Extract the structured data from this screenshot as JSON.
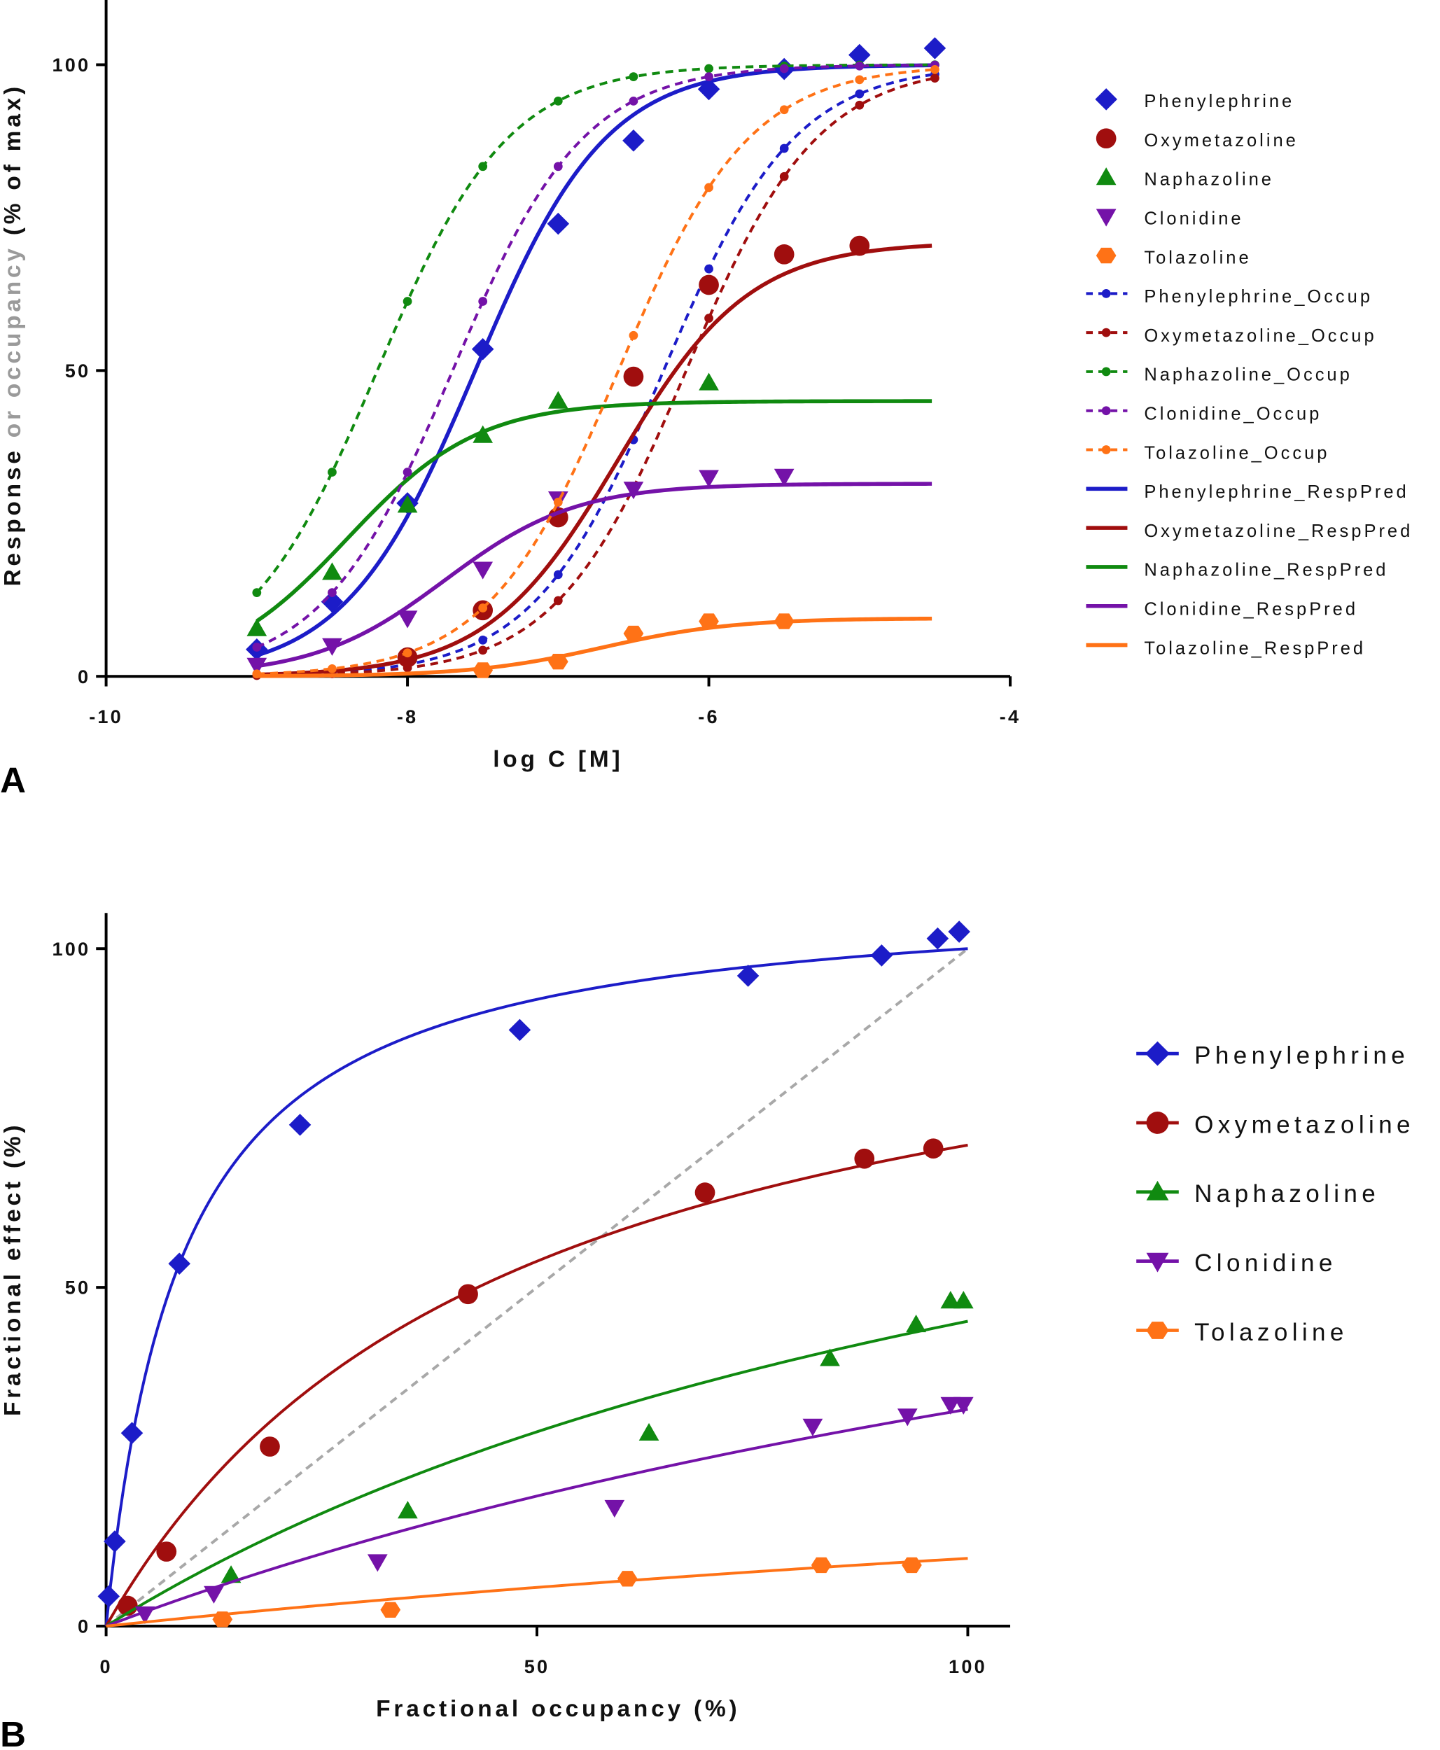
{
  "colors": {
    "Phenylephrine": "#1c1cc8",
    "Oxymetazoline": "#a00e0e",
    "Naphazoline": "#108a10",
    "Clonidine": "#7412a8",
    "Tolazoline": "#ff7216",
    "identity": "#a8a8a8",
    "grayText": "#9a9a9a"
  },
  "panel_labels": {
    "a": "A",
    "b": "B"
  },
  "chart_data": [
    {
      "type": "line",
      "id": "A",
      "xlabel": "log C [M]",
      "ylabel_parts": [
        "Response ",
        "or occupancy",
        " (% of max)"
      ],
      "xlim": [
        -10,
        -4
      ],
      "ylim": [
        0,
        100
      ],
      "xticks": [
        -10,
        -8,
        -6,
        -4
      ],
      "yticks": [
        0,
        50,
        100
      ],
      "grid": false,
      "legend_position": "right",
      "drugs": [
        {
          "name": "Phenylephrine",
          "marker": "diamond",
          "x": [
            -9,
            -8.5,
            -8,
            -7.5,
            -7,
            -6.5,
            -6,
            -5.5,
            -5,
            -4.5
          ],
          "y": [
            4.4,
            12.2,
            28.3,
            53.5,
            74,
            87.6,
            96,
            99.3,
            101.6,
            102.7
          ],
          "occ_logK": -6.3,
          "resp_max": 100,
          "resp_logEC50": -7.55
        },
        {
          "name": "Oxymetazoline",
          "marker": "circle",
          "x": [
            -8,
            -7.5,
            -7,
            -6.5,
            -6,
            -5.5,
            -5
          ],
          "y": [
            3.1,
            10.8,
            26,
            49,
            64,
            69,
            70.4
          ],
          "occ_logK": -6.15,
          "resp_max": 71,
          "resp_logEC50": -6.6
        },
        {
          "name": "Naphazoline",
          "marker": "triangle-up",
          "x": [
            -9,
            -8.5,
            -8,
            -7.5,
            -7,
            -6
          ],
          "y": [
            7.8,
            17,
            28,
            39.4,
            45,
            48
          ],
          "occ_logK": -8.2,
          "resp_max": 45,
          "resp_logEC50": -8.4
        },
        {
          "name": "Clonidine",
          "marker": "triangle-down",
          "x": [
            -9,
            -8.5,
            -8,
            -7.5,
            -7,
            -6.5,
            -6,
            -5.5
          ],
          "y": [
            1.8,
            5,
            9.5,
            17.5,
            29,
            30.6,
            32.5,
            32.7
          ],
          "occ_logK": -7.7,
          "resp_max": 31.5,
          "resp_logEC50": -7.75
        },
        {
          "name": "Tolazoline",
          "marker": "hexagon",
          "x": [
            -7.5,
            -7,
            -6.5,
            -6,
            -5.5
          ],
          "y": [
            1,
            2.4,
            7,
            9,
            9
          ],
          "occ_logK": -6.6,
          "resp_max": 9.5,
          "resp_logEC50": -6.7
        }
      ],
      "legend": [
        "Phenylephrine",
        "Oxymetazoline",
        "Naphazoline",
        "Clonidine",
        "Tolazoline",
        "Phenylephrine_Occup",
        "Oxymetazoline_Occup",
        "Naphazoline_Occup",
        "Clonidine_Occup",
        "Tolazoline_Occup",
        "Phenylephrine_RespPred",
        "Oxymetazoline_RespPred",
        "Naphazoline_RespPred",
        "Clonidine_RespPred",
        "Tolazoline_RespPred"
      ]
    },
    {
      "type": "scatter",
      "id": "B",
      "xlabel": "Fractional occupancy (%)",
      "ylabel": "Fractional effect (%)",
      "xlim": [
        0,
        100
      ],
      "ylim": [
        0,
        100
      ],
      "xticks": [
        0,
        50,
        100
      ],
      "yticks": [
        0,
        50,
        100
      ],
      "grid": false,
      "legend_position": "right",
      "identity_line": true,
      "drugs": [
        {
          "name": "Phenylephrine",
          "marker": "diamond",
          "x": [
            0.3,
            1,
            3,
            8.5,
            22.5,
            48,
            74.5,
            90,
            96.5,
            99
          ],
          "y": [
            4.4,
            12.5,
            28.5,
            53.5,
            74,
            88,
            96,
            99,
            101.5,
            102.5
          ],
          "emax": 100,
          "K": 8.8
        },
        {
          "name": "Oxymetazoline",
          "marker": "circle",
          "x": [
            2.5,
            7,
            19,
            42,
            69.5,
            88,
            96
          ],
          "y": [
            3,
            11,
            26.5,
            49,
            64,
            69,
            70.5
          ],
          "emax": 71,
          "K": 46.7
        },
        {
          "name": "Naphazoline",
          "marker": "triangle-up",
          "x": [
            14.5,
            35,
            63,
            84,
            94,
            98,
            99.5
          ],
          "y": [
            7.5,
            17,
            28.5,
            39.5,
            44.5,
            48,
            48
          ],
          "emax": 45,
          "K": 132
        },
        {
          "name": "Clonidine",
          "marker": "triangle-down",
          "x": [
            4.5,
            12.5,
            31.5,
            59,
            82,
            93,
            98,
            99.5
          ],
          "y": [
            1.8,
            4.8,
            9.5,
            17.5,
            29.5,
            31,
            32.7,
            32.7
          ],
          "emax": 32,
          "K": 200
        },
        {
          "name": "Tolazoline",
          "marker": "hexagon",
          "x": [
            13.5,
            33,
            60.5,
            83,
            93.5
          ],
          "y": [
            1,
            2.4,
            7,
            9,
            9
          ],
          "emax": 10,
          "K": 300
        }
      ],
      "legend": [
        "Phenylephrine",
        "Oxymetazoline",
        "Naphazoline",
        "Clonidine",
        "Tolazoline"
      ]
    }
  ]
}
